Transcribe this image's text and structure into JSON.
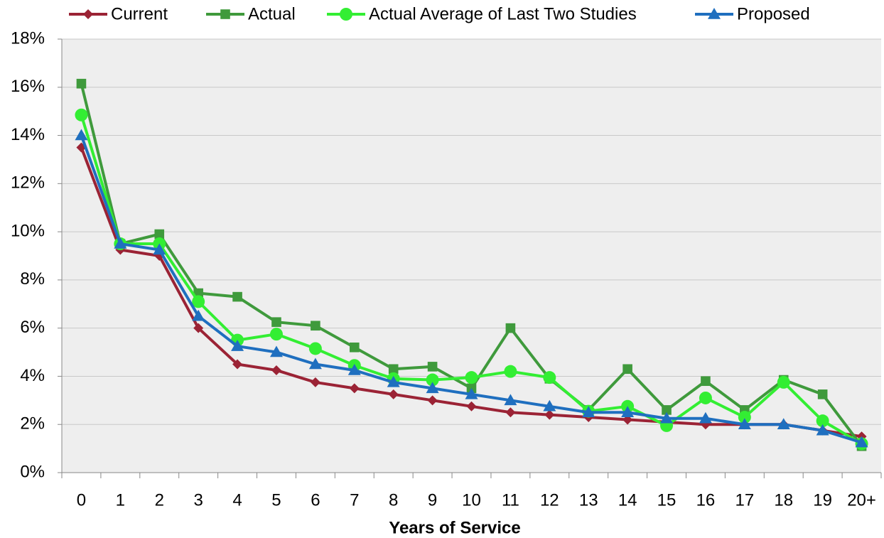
{
  "chart_data": {
    "type": "line",
    "x_label": "Years of Service",
    "categories": [
      "0",
      "1",
      "2",
      "3",
      "4",
      "5",
      "6",
      "7",
      "8",
      "9",
      "10",
      "11",
      "12",
      "13",
      "14",
      "15",
      "16",
      "17",
      "18",
      "19",
      "20+"
    ],
    "series": [
      {
        "name": "Current",
        "color": "#9b2335",
        "marker": "diamond",
        "values": [
          13.5,
          9.25,
          9.0,
          6.0,
          4.5,
          4.25,
          3.75,
          3.5,
          3.25,
          3.0,
          2.75,
          2.5,
          2.4,
          2.3,
          2.2,
          2.1,
          2.0,
          2.0,
          2.0,
          1.75,
          1.5
        ]
      },
      {
        "name": "Actual",
        "color": "#3f9a3c",
        "marker": "square",
        "values": [
          16.15,
          9.5,
          9.9,
          7.45,
          7.3,
          6.25,
          6.1,
          5.2,
          4.3,
          4.4,
          3.5,
          6.0,
          3.9,
          2.6,
          4.3,
          2.6,
          3.8,
          2.6,
          3.85,
          3.25,
          1.1
        ]
      },
      {
        "name": "Actual Average of Last Two Studies",
        "color": "#33ee33",
        "marker": "circle",
        "values": [
          14.85,
          9.5,
          9.5,
          7.1,
          5.5,
          5.75,
          5.15,
          4.45,
          3.9,
          3.85,
          3.95,
          4.2,
          3.95,
          2.55,
          2.75,
          1.95,
          3.1,
          2.3,
          3.75,
          2.15,
          1.2
        ]
      },
      {
        "name": "Proposed",
        "color": "#1f6fbf",
        "marker": "triangle",
        "values": [
          14.0,
          9.5,
          9.25,
          6.5,
          5.25,
          5.0,
          4.5,
          4.25,
          3.75,
          3.5,
          3.25,
          3.0,
          2.75,
          2.5,
          2.5,
          2.25,
          2.25,
          2.0,
          2.0,
          1.75,
          1.25
        ]
      }
    ],
    "ylim": [
      0,
      18
    ],
    "yticks": [
      {
        "value": 0,
        "label": "0%"
      },
      {
        "value": 2,
        "label": "2%"
      },
      {
        "value": 4,
        "label": "4%"
      },
      {
        "value": 6,
        "label": "6%"
      },
      {
        "value": 8,
        "label": "8%"
      },
      {
        "value": 10,
        "label": "10%"
      },
      {
        "value": 12,
        "label": "12%"
      },
      {
        "value": 14,
        "label": "14%"
      },
      {
        "value": 16,
        "label": "16%"
      },
      {
        "value": 18,
        "label": "18%"
      }
    ],
    "grid": true,
    "legend": "top"
  }
}
